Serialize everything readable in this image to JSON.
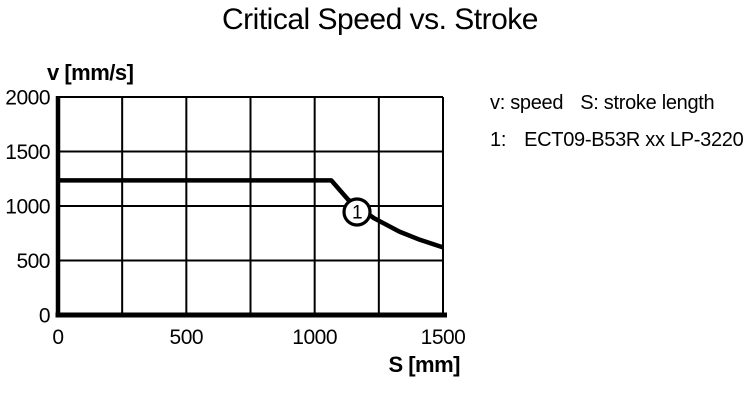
{
  "title": "Critical Speed vs. Stroke",
  "legend": {
    "line1_item1": "v: speed",
    "line1_item2": "S: stroke length",
    "line2_ref": "1:",
    "line2_label": "ECT09-B53R xx LP-3220"
  },
  "chart_data": {
    "type": "line",
    "title": "Critical Speed vs. Stroke",
    "xlabel": "S [mm]",
    "ylabel": "v [mm/s]",
    "xlim": [
      0,
      1500
    ],
    "ylim": [
      0,
      2000
    ],
    "x_ticks": [
      0,
      500,
      1000,
      1500
    ],
    "y_ticks": [
      0,
      500,
      1000,
      1500,
      2000
    ],
    "x_grid_step": 250,
    "y_grid_step": 500,
    "grid": true,
    "legend_position": "right",
    "line_color": "#000000",
    "series": [
      {
        "name": "ECT09-B53R xx LP-3220",
        "marker_label": "1",
        "marker_point": {
          "x": 1165,
          "y": 945
        },
        "description": "critical speed limit: constant ~1235 mm/s up to ~1065 mm stroke, then decreasing to ~620 mm/s at 1500 mm stroke",
        "points": [
          [
            0,
            1235
          ],
          [
            1065,
            1235
          ],
          [
            1130,
            1060
          ],
          [
            1230,
            890
          ],
          [
            1330,
            765
          ],
          [
            1410,
            690
          ],
          [
            1500,
            620
          ]
        ]
      }
    ]
  }
}
